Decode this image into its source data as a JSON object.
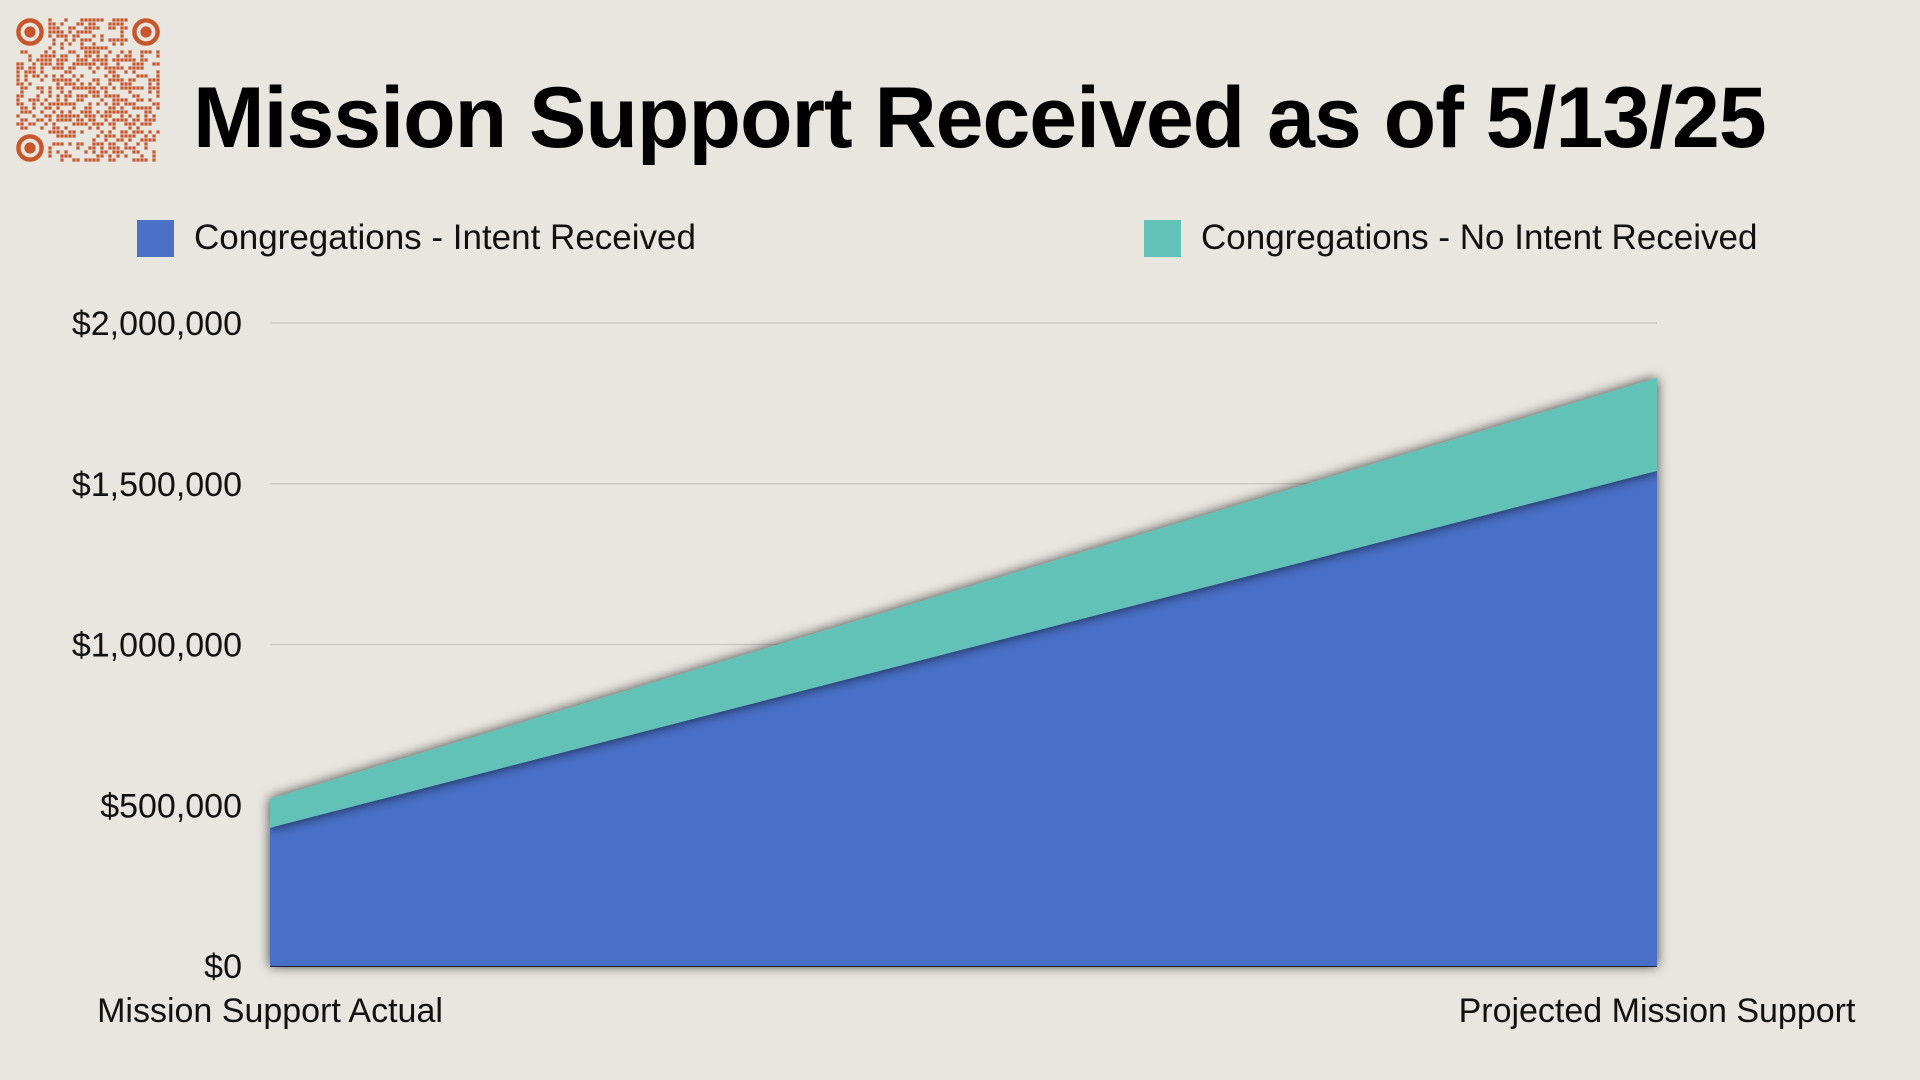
{
  "page": {
    "title": "Mission Support Received as of 5/13/25",
    "qr_icon": "qr-code-icon",
    "background_color": "#e9e6e0",
    "qr_color": "#c8552c"
  },
  "legend": [
    {
      "label": "Congregations - Intent Received",
      "color": "#4a70c8"
    },
    {
      "label": "Congregations - No Intent Received",
      "color": "#62c2b8"
    }
  ],
  "chart_data": {
    "type": "area",
    "stacked": true,
    "categories": [
      "Mission Support Actual",
      "Projected Mission Support"
    ],
    "series": [
      {
        "name": "Congregations - Intent Received",
        "values": [
          430000,
          1540000
        ],
        "color": "#4a70c8"
      },
      {
        "name": "Congregations - No Intent Received",
        "values": [
          90000,
          290000
        ],
        "color": "#62c2b8"
      }
    ],
    "y_ticks": [
      0,
      500000,
      1000000,
      1500000,
      2000000
    ],
    "y_tick_labels": [
      "$0",
      "$500,000",
      "$1,000,000",
      "$1,500,000",
      "$2,000,000"
    ],
    "ylim": [
      0,
      2000000
    ],
    "grid": true,
    "legend_position": "top"
  }
}
